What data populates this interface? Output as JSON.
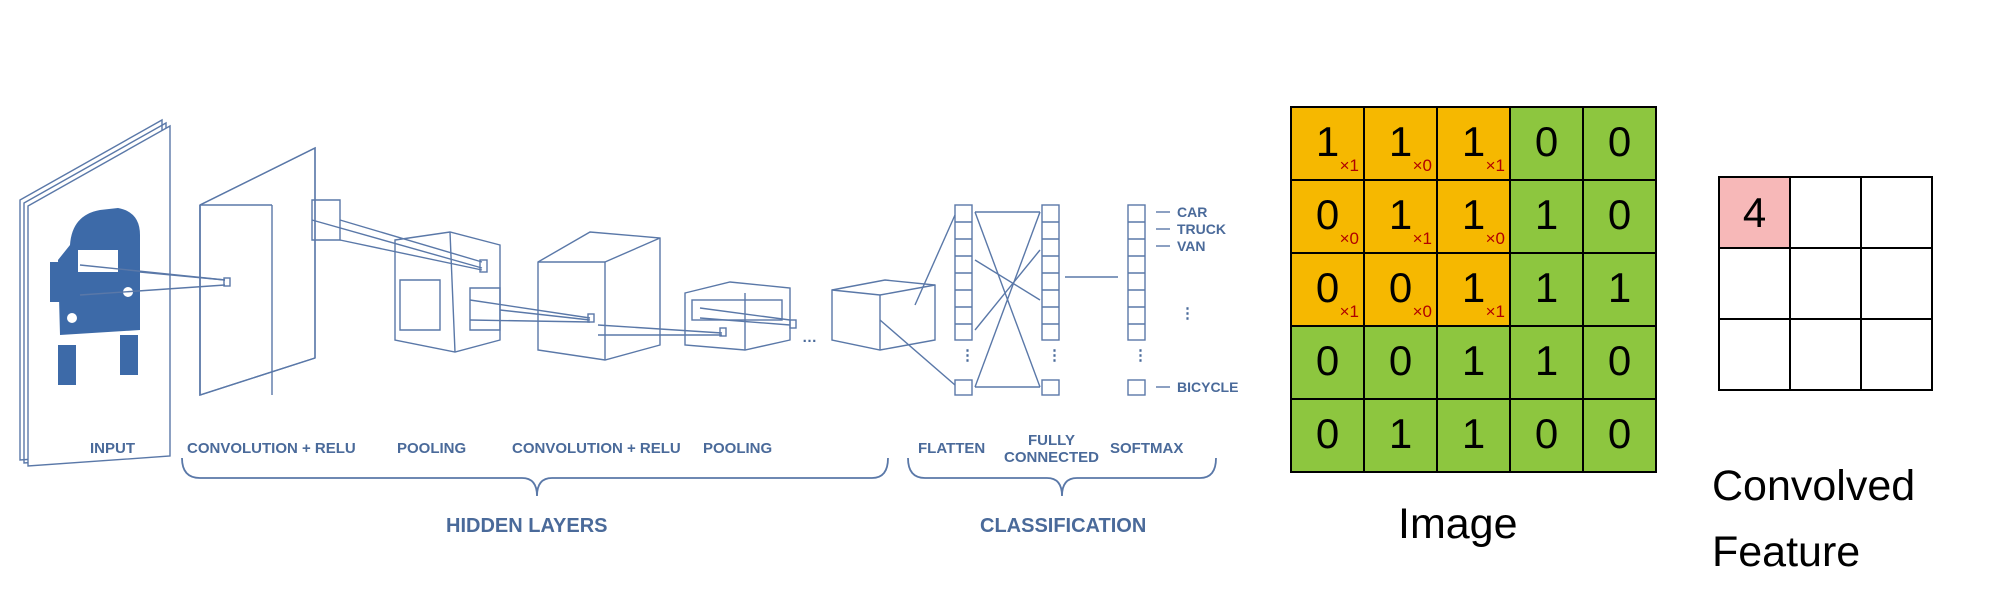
{
  "cnn": {
    "layer_labels": {
      "input": "INPUT",
      "conv1": "CONVOLUTION + RELU",
      "pool1": "POOLING",
      "conv2": "CONVOLUTION + RELU",
      "pool2": "POOLING",
      "flatten": "FLATTEN",
      "fc_line1": "FULLY",
      "fc_line2": "CONNECTED",
      "softmax": "SOFTMAX"
    },
    "group_labels": {
      "hidden": "HIDDEN LAYERS",
      "classification": "CLASSIFICATION"
    },
    "outputs": [
      "CAR",
      "TRUCK",
      "VAN",
      "BICYCLE"
    ],
    "ellipsis": "…",
    "color": "#4a6a9a"
  },
  "image_matrix": {
    "caption": "Image",
    "values": [
      [
        1,
        1,
        1,
        0,
        0
      ],
      [
        0,
        1,
        1,
        1,
        0
      ],
      [
        0,
        0,
        1,
        1,
        1
      ],
      [
        0,
        0,
        1,
        1,
        0
      ],
      [
        0,
        1,
        1,
        0,
        0
      ]
    ],
    "kernel": [
      [
        "×1",
        "×0",
        "×1"
      ],
      [
        "×0",
        "×1",
        "×0"
      ],
      [
        "×1",
        "×0",
        "×1"
      ]
    ],
    "highlight_color": "#f6b800",
    "base_color": "#8dc63f"
  },
  "convolved_feature": {
    "caption_line1": "Convolved",
    "caption_line2": "Feature",
    "values": [
      [
        "4",
        "",
        ""
      ],
      [
        "",
        "",
        ""
      ],
      [
        "",
        "",
        ""
      ]
    ],
    "filled_color": "#f7b8b8"
  }
}
